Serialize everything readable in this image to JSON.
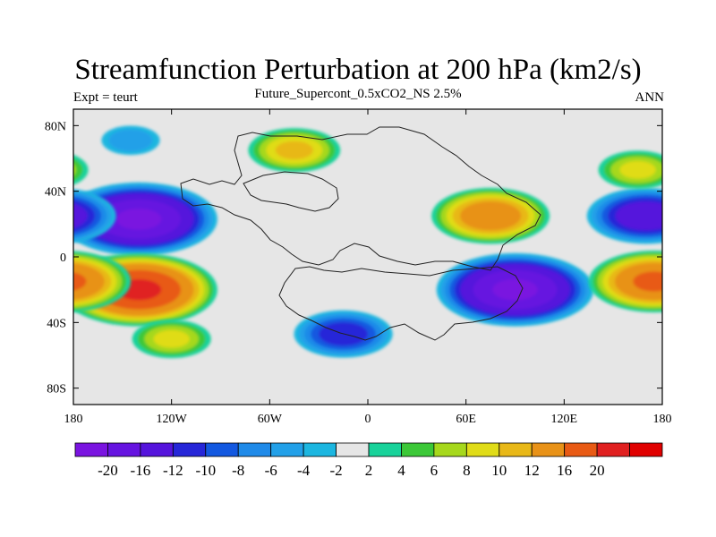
{
  "title": "Streamfunction Perturbation at 200 hPa (km2/s)",
  "subtitle_left": "Expt = teurt",
  "subtitle_center": "Future_Supercont_0.5xCO2_NS 2.5%",
  "subtitle_right": "ANN",
  "colors": {
    "background": "#e6e6e6",
    "levels": [
      "#7a14e0",
      "#6614e0",
      "#5514dc",
      "#2626d8",
      "#1358e0",
      "#1f8ae8",
      "#22a0e8",
      "#1cb6e0",
      "#e6e6e6",
      "#18d29a",
      "#3cc838",
      "#a6d81c",
      "#e0dc18",
      "#e8b818",
      "#e89218",
      "#e85a14",
      "#e02020",
      "#e00000"
    ]
  },
  "chart_data": {
    "type": "heatmap",
    "title": "Streamfunction Perturbation at 200 hPa (km2/s)",
    "x_ticks": [
      "180",
      "120W",
      "60W",
      "0",
      "60E",
      "120E",
      "180"
    ],
    "y_ticks": [
      "80N",
      "40N",
      "0",
      "40S",
      "80S"
    ],
    "xlim": [
      -180,
      180
    ],
    "ylim": [
      -90,
      90
    ],
    "colorbar_labels": [
      "-20",
      "-16",
      "-12",
      "-10",
      "-8",
      "-6",
      "-4",
      "-2",
      "2",
      "4",
      "6",
      "8",
      "10",
      "12",
      "16",
      "20"
    ],
    "blobs": [
      {
        "lon": -140,
        "lat": 23,
        "value": -20
      },
      {
        "lon": 170,
        "lat": 25,
        "value": -14
      },
      {
        "lon": -145,
        "lat": 71,
        "value": -5
      },
      {
        "lon": 90,
        "lat": -20,
        "value": -20
      },
      {
        "lon": -15,
        "lat": -47,
        "value": -11
      },
      {
        "lon": -140,
        "lat": -20,
        "value": 20
      },
      {
        "lon": 175,
        "lat": -15,
        "value": 16
      },
      {
        "lon": -120,
        "lat": -50,
        "value": 8
      },
      {
        "lon": 75,
        "lat": 25,
        "value": 14
      },
      {
        "lon": -45,
        "lat": 65,
        "value": 10
      },
      {
        "lon": 165,
        "lat": 53,
        "value": 8
      }
    ]
  }
}
